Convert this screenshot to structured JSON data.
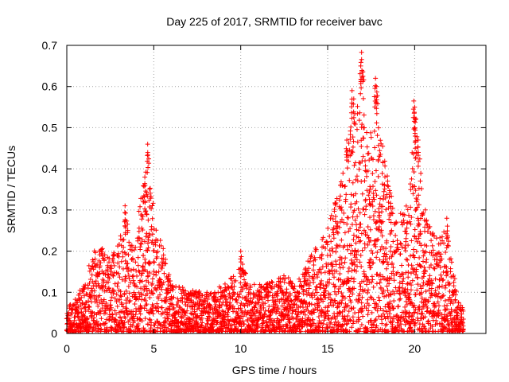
{
  "chart_data": {
    "type": "scatter",
    "title": "Day 225 of 2017, SRMTID for receiver bavc",
    "xlabel": "GPS time / hours",
    "ylabel": "SRMTID / TECUs",
    "xlim": [
      0,
      24.1
    ],
    "ylim": [
      0,
      0.7
    ],
    "xticks": [
      "0",
      "5",
      "10",
      "15",
      "20"
    ],
    "xtick_values": [
      0,
      5,
      10,
      15,
      20
    ],
    "yticks": [
      "0",
      "0.1",
      "0.2",
      "0.3",
      "0.4",
      "0.5",
      "0.6",
      "0.7"
    ],
    "ytick_values": [
      0,
      0.1,
      0.2,
      0.3,
      0.4,
      0.5,
      0.6,
      0.7
    ],
    "grid": true,
    "marker": "+",
    "color": "#ff0000",
    "envelope": [
      [
        0.0,
        0.06
      ],
      [
        0.5,
        0.09
      ],
      [
        1.0,
        0.12
      ],
      [
        1.5,
        0.2
      ],
      [
        2.0,
        0.21
      ],
      [
        2.5,
        0.18
      ],
      [
        3.0,
        0.22
      ],
      [
        3.4,
        0.31
      ],
      [
        3.8,
        0.2
      ],
      [
        4.3,
        0.35
      ],
      [
        4.7,
        0.46
      ],
      [
        5.0,
        0.3
      ],
      [
        5.5,
        0.22
      ],
      [
        6.0,
        0.12
      ],
      [
        7.0,
        0.11
      ],
      [
        8.0,
        0.1
      ],
      [
        9.0,
        0.12
      ],
      [
        9.8,
        0.15
      ],
      [
        10.0,
        0.2
      ],
      [
        10.5,
        0.12
      ],
      [
        11.0,
        0.12
      ],
      [
        12.0,
        0.13
      ],
      [
        12.5,
        0.15
      ],
      [
        13.0,
        0.12
      ],
      [
        13.5,
        0.14
      ],
      [
        14.0,
        0.19
      ],
      [
        14.5,
        0.22
      ],
      [
        15.0,
        0.26
      ],
      [
        15.5,
        0.33
      ],
      [
        16.0,
        0.42
      ],
      [
        16.5,
        0.55
      ],
      [
        16.8,
        0.59
      ],
      [
        17.0,
        0.68
      ],
      [
        17.3,
        0.45
      ],
      [
        17.8,
        0.62
      ],
      [
        18.3,
        0.42
      ],
      [
        18.8,
        0.3
      ],
      [
        19.3,
        0.29
      ],
      [
        19.7,
        0.33
      ],
      [
        20.0,
        0.56
      ],
      [
        20.3,
        0.44
      ],
      [
        20.7,
        0.28
      ],
      [
        21.2,
        0.23
      ],
      [
        21.8,
        0.28
      ],
      [
        22.2,
        0.16
      ],
      [
        22.5,
        0.08
      ],
      [
        22.8,
        0.06
      ]
    ],
    "peaks": [
      {
        "x": 4.65,
        "y": 0.46
      },
      {
        "x": 4.5,
        "y": 0.36
      },
      {
        "x": 3.35,
        "y": 0.31
      },
      {
        "x": 16.95,
        "y": 0.683
      },
      {
        "x": 16.9,
        "y": 0.65
      },
      {
        "x": 16.4,
        "y": 0.59
      },
      {
        "x": 16.5,
        "y": 0.57
      },
      {
        "x": 16.1,
        "y": 0.47
      },
      {
        "x": 17.75,
        "y": 0.62
      },
      {
        "x": 17.8,
        "y": 0.6
      },
      {
        "x": 19.95,
        "y": 0.565
      },
      {
        "x": 20.0,
        "y": 0.55
      },
      {
        "x": 20.05,
        "y": 0.52
      },
      {
        "x": 20.2,
        "y": 0.47
      },
      {
        "x": 10.0,
        "y": 0.2
      },
      {
        "x": 21.85,
        "y": 0.28
      }
    ],
    "gap_markers_x": [
      3.6,
      17.2,
      18.8
    ]
  }
}
